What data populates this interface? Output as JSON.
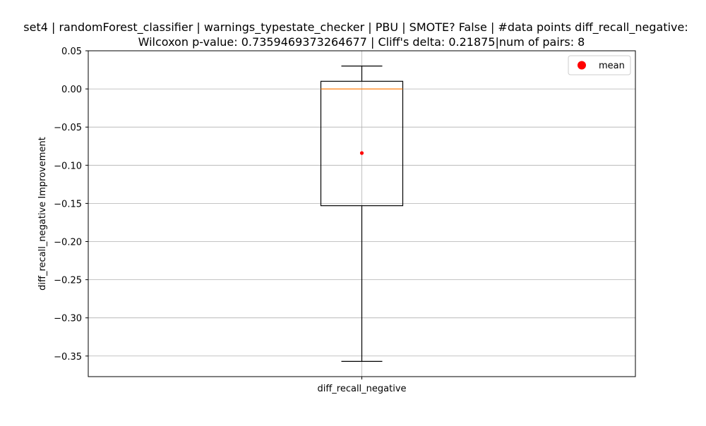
{
  "chart_data": {
    "type": "box",
    "title": "set4 | randomForest_classifier | warnings_typestate_checker | PBU | SMOTE? False | #data points diff_recall_negative:",
    "subtitle": "Wilcoxon p-value: 0.7359469373264677 | Cliff's delta: 0.21875|num of pairs: 8",
    "xlabel": "",
    "ylabel": "diff_recall_negative Improvement",
    "ylim": [
      -0.377,
      0.05
    ],
    "yticks": [
      0.05,
      0.0,
      -0.05,
      -0.1,
      -0.15,
      -0.2,
      -0.25,
      -0.3,
      -0.35
    ],
    "ytick_labels": [
      "0.05",
      "0.00",
      "−0.05",
      "−0.10",
      "−0.15",
      "−0.20",
      "−0.25",
      "−0.30",
      "−0.35"
    ],
    "categories": [
      "diff_recall_negative"
    ],
    "grid": true,
    "legend_position": "top-right",
    "legend": [
      {
        "label": "mean",
        "marker": "circle",
        "color": "#ff0000"
      }
    ],
    "boxes": [
      {
        "category": "diff_recall_negative",
        "whisker_low": -0.357,
        "q1": -0.153,
        "median": 0.0,
        "q3": 0.01,
        "whisker_high": 0.03,
        "mean": -0.084
      }
    ],
    "colors": {
      "box": "#000000",
      "median": "#ff7f0e",
      "mean": "#ff0000",
      "grid": "#b0b0b0"
    }
  }
}
